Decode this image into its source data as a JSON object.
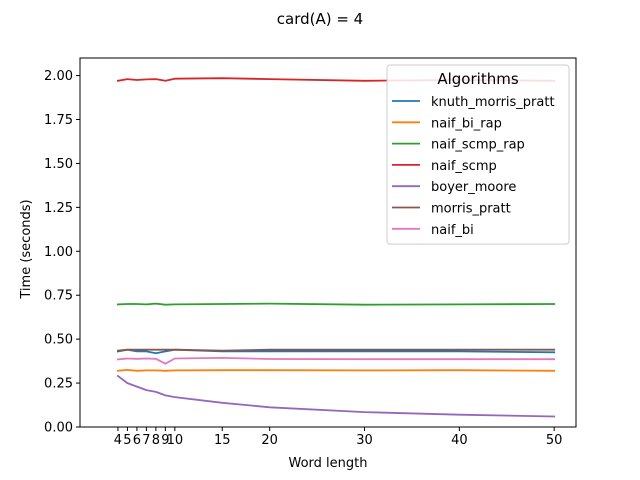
{
  "chart_data": {
    "type": "line",
    "title": "card(A) = 4",
    "xlabel": "Word length",
    "ylabel": "Time (seconds)",
    "xlim": [
      0,
      52.3
    ],
    "ylim": [
      0,
      2.1
    ],
    "xticks": [
      4,
      5,
      6,
      7,
      8,
      9,
      10,
      15,
      20,
      30,
      40,
      50
    ],
    "yticks": [
      0.0,
      0.25,
      0.5,
      0.75,
      1.0,
      1.25,
      1.5,
      1.75,
      2.0
    ],
    "ytick_labels": [
      "0.00",
      "0.25",
      "0.50",
      "0.75",
      "1.00",
      "1.25",
      "1.50",
      "1.75",
      "2.00"
    ],
    "grid": false,
    "legend": {
      "title": "Algorithms",
      "placement": "top-right"
    },
    "x": [
      4,
      5,
      6,
      7,
      8,
      9,
      10,
      15,
      20,
      30,
      40,
      50
    ],
    "series": [
      {
        "name": "knuth_morris_pratt",
        "color": "#1f77b4",
        "values": [
          0.43,
          0.44,
          0.43,
          0.43,
          0.42,
          0.43,
          0.44,
          0.43,
          0.43,
          0.43,
          0.43,
          0.425
        ]
      },
      {
        "name": "naif_bi_rap",
        "color": "#ff7f0e",
        "values": [
          0.32,
          0.325,
          0.32,
          0.322,
          0.322,
          0.32,
          0.322,
          0.323,
          0.323,
          0.322,
          0.323,
          0.32
        ]
      },
      {
        "name": "naif_scmp_rap",
        "color": "#2ca02c",
        "values": [
          0.698,
          0.7,
          0.7,
          0.698,
          0.702,
          0.696,
          0.698,
          0.7,
          0.702,
          0.696,
          0.698,
          0.7
        ]
      },
      {
        "name": "naif_scmp",
        "color": "#d62728",
        "values": [
          1.97,
          1.98,
          1.975,
          1.978,
          1.98,
          1.97,
          1.982,
          1.985,
          1.98,
          1.97,
          1.975,
          1.97
        ]
      },
      {
        "name": "boyer_moore",
        "color": "#9467bd",
        "values": [
          0.29,
          0.25,
          0.23,
          0.21,
          0.2,
          0.18,
          0.17,
          0.138,
          0.112,
          0.085,
          0.07,
          0.06
        ]
      },
      {
        "name": "morris_pratt",
        "color": "#8c564b",
        "values": [
          0.435,
          0.44,
          0.44,
          0.44,
          0.44,
          0.44,
          0.44,
          0.435,
          0.44,
          0.44,
          0.44,
          0.44
        ]
      },
      {
        "name": "naif_bi",
        "color": "#e377c2",
        "values": [
          0.385,
          0.39,
          0.388,
          0.39,
          0.388,
          0.36,
          0.39,
          0.393,
          0.387,
          0.386,
          0.386,
          0.386
        ]
      }
    ]
  }
}
